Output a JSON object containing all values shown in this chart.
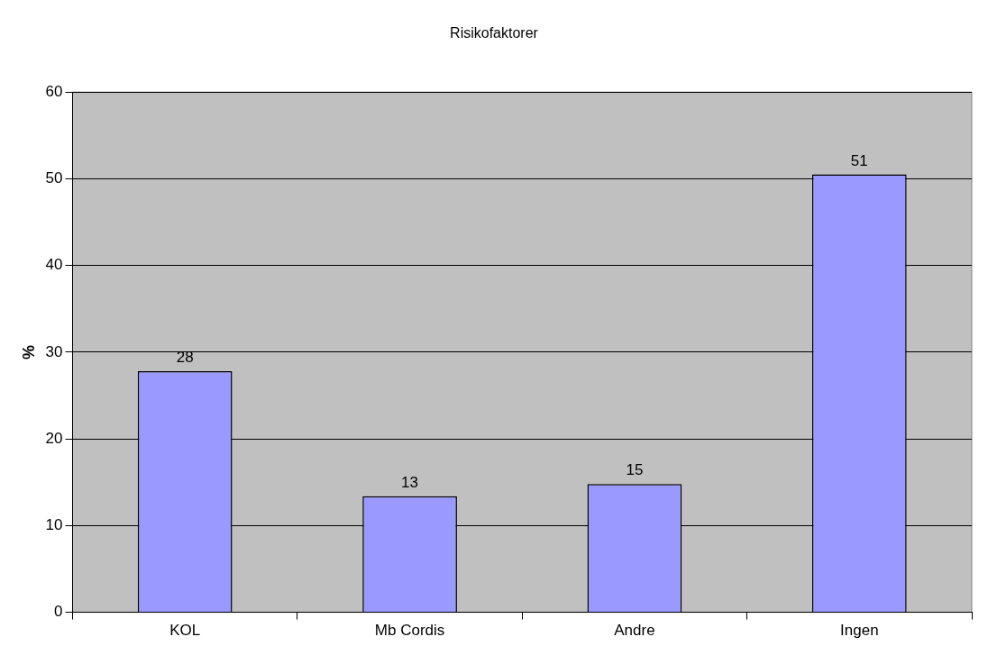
{
  "chart_data": {
    "type": "bar",
    "title": "Risikofaktorer",
    "ylabel": "%",
    "categories": [
      "KOL",
      "Mb Cordis",
      "Andre",
      "Ingen"
    ],
    "values": [
      27.8,
      13.4,
      14.8,
      50.5
    ],
    "value_labels": [
      "28",
      "13",
      "15",
      "51"
    ],
    "color": "#9999ff",
    "ylim": [
      0,
      60
    ],
    "yticks": [
      0,
      10,
      20,
      30,
      40,
      50,
      60
    ],
    "grid": "y"
  }
}
